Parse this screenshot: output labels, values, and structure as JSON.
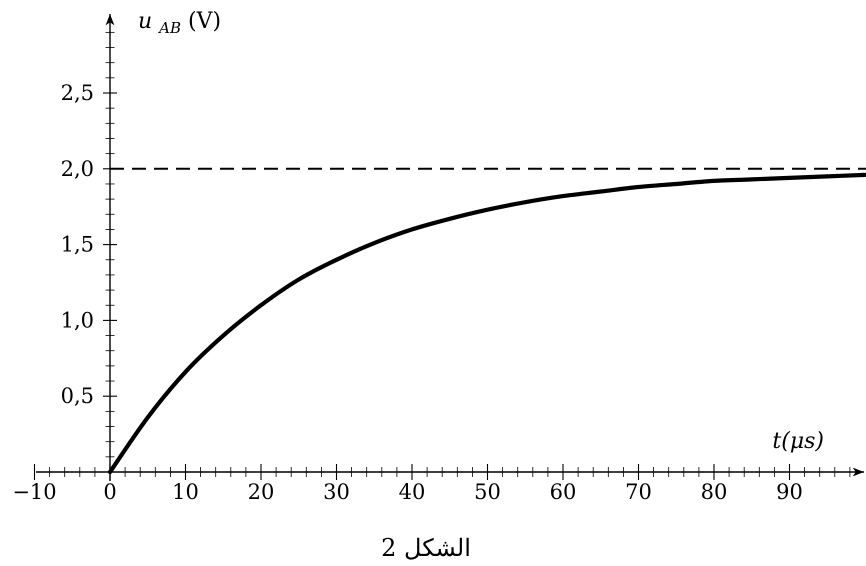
{
  "chart_data": {
    "type": "line",
    "title": "",
    "caption": "الشكل 2",
    "xlabel": "t(μs)",
    "ylabel": "u_AB(V)",
    "ylabel_main": "u",
    "ylabel_sub": "AB",
    "ylabel_unit": "(V)",
    "xlim": [
      -10,
      100
    ],
    "ylim": [
      0,
      2.9
    ],
    "x_ticks": [
      -10,
      0,
      10,
      20,
      30,
      40,
      50,
      60,
      70,
      80,
      90
    ],
    "x_tick_labels": [
      "−10",
      "0",
      "10",
      "20",
      "30",
      "40",
      "50",
      "60",
      "70",
      "80",
      "90"
    ],
    "x_minor_step": 2,
    "y_ticks": [
      0.5,
      1.0,
      1.5,
      2.0,
      2.5
    ],
    "y_tick_labels": [
      "0,5",
      "1,0",
      "1,5",
      "2,0",
      "2,5"
    ],
    "y_minor_step": 0.1,
    "grid": false,
    "asymptote": {
      "y": 2.0,
      "style": "dashed"
    },
    "series": [
      {
        "type": "curve",
        "x": [
          0,
          5,
          10,
          15,
          20,
          25,
          30,
          35,
          40,
          45,
          50,
          55,
          60,
          65,
          70,
          75,
          80,
          85,
          90,
          95,
          100
        ],
        "y": [
          0,
          0.36,
          0.66,
          0.9,
          1.1,
          1.27,
          1.4,
          1.51,
          1.6,
          1.67,
          1.73,
          1.78,
          1.82,
          1.85,
          1.88,
          1.9,
          1.92,
          1.93,
          1.94,
          1.95,
          1.96
        ]
      }
    ]
  }
}
